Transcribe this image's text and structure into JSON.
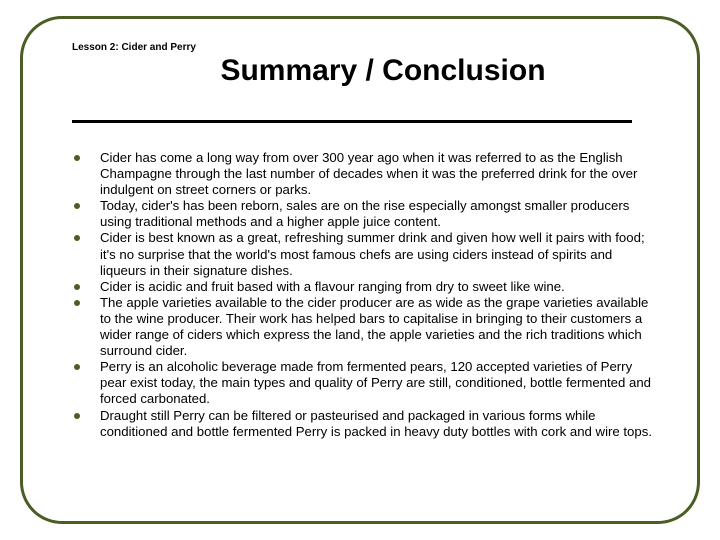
{
  "frame": {
    "border_color": "#4a5d23",
    "border_width": 3,
    "radius": 42
  },
  "lesson_label": "Lesson 2: Cider and Perry",
  "title": "Summary / Conclusion",
  "rule": {
    "color": "#000000",
    "height": 3
  },
  "bullet_style": {
    "color": "#4a5d23",
    "shape": "disc",
    "size": 6
  },
  "text_style": {
    "fontsize": 13.2,
    "line_height": 1.22,
    "color": "#000000",
    "family": "Arial"
  },
  "bullets": [
    "Cider has come a long way from over 300 year ago when it was referred to as the English Champagne through the last number of decades when it was the preferred drink for the over indulgent on street corners or parks.",
    "Today, cider's has been reborn, sales are on the rise especially amongst smaller producers using traditional methods and a higher apple juice content.",
    "Cider is best known as a great, refreshing summer drink and given how well it pairs with food; it's no surprise that the world's most famous chefs are using ciders instead of spirits and liqueurs in their signature dishes.",
    "Cider is acidic and fruit based with a flavour ranging from dry to sweet like wine.",
    "The apple varieties available to the cider producer are as wide as the grape varieties available to the wine producer. Their work has helped bars to capitalise in bringing to their customers a wider range of ciders which express the land, the apple varieties and the rich traditions which surround cider.",
    "Perry is an alcoholic beverage made from fermented pears, 120 accepted varieties of Perry pear exist today, the main types and quality of Perry are still, conditioned, bottle fermented and forced carbonated.",
    "Draught still Perry can be filtered or pasteurised and packaged in various forms while conditioned and bottle fermented Perry is packed in heavy duty bottles with cork and wire tops."
  ]
}
